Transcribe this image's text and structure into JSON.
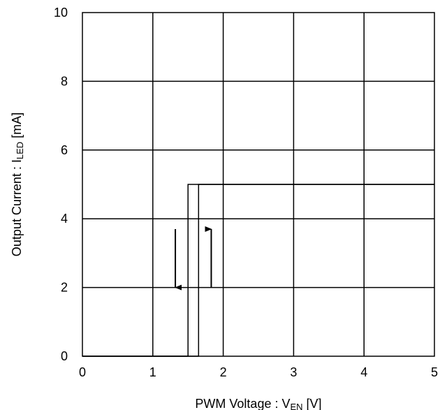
{
  "chart_data": {
    "type": "line",
    "xlabel": {
      "prefix": "PWM Voltage : V",
      "sub": "EN",
      "suffix": " [V]"
    },
    "ylabel": {
      "prefix": "Output Current : I",
      "sub": "LED",
      "suffix": " [mA]"
    },
    "xlim": [
      0,
      5
    ],
    "ylim": [
      0,
      10
    ],
    "x_ticks": [
      0,
      1,
      2,
      3,
      4,
      5
    ],
    "y_ticks": [
      0,
      2,
      4,
      6,
      8,
      10
    ],
    "grid": true,
    "series": [
      {
        "x": [
          0,
          1.5,
          1.5,
          5
        ],
        "y": [
          0,
          0,
          5,
          5
        ]
      },
      {
        "x": [
          0,
          1.65,
          1.65,
          5
        ],
        "y": [
          0,
          0,
          5,
          5
        ]
      }
    ],
    "annotations": [
      {
        "type": "arrow",
        "direction": "down",
        "x": 1.32,
        "y_from": 3.7,
        "y_to": 2.0
      },
      {
        "type": "arrow",
        "direction": "up",
        "x": 1.83,
        "y_from": 2.0,
        "y_to": 3.7
      }
    ]
  }
}
